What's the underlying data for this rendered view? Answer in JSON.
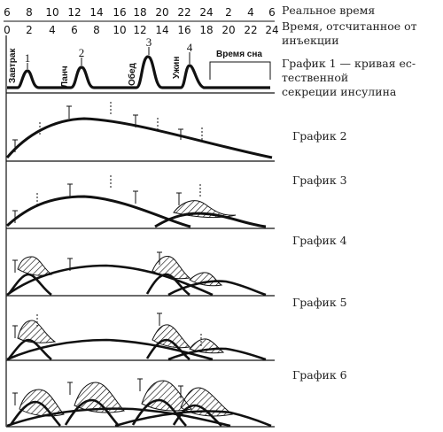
{
  "axis": {
    "real_time_ticks": [
      "6",
      "8",
      "10",
      "12",
      "14",
      "16",
      "18",
      "20",
      "22",
      "24",
      "2",
      "4",
      "6"
    ],
    "injection_time_ticks": [
      "0",
      "2",
      "4",
      "6",
      "8",
      "10",
      "12",
      "14",
      "16",
      "18",
      "20",
      "22",
      "24"
    ]
  },
  "side_labels": {
    "real_time": "Реальное время",
    "injection_time_line1": "Время, отсчитанное от",
    "injection_time_line2": "инъекции",
    "graph1_line1": "График 1 — кривая ес-",
    "graph1_line2": "тественной",
    "graph1_line3": "секреции инсулина",
    "graph2": "График 2",
    "graph3": "График 3",
    "graph4": "График 4",
    "graph5": "График 5",
    "graph6": "График 6"
  },
  "graph1": {
    "meals": [
      "Завтрак",
      "Ланч",
      "Обед",
      "Ужин"
    ],
    "peak_numbers": [
      "1",
      "2",
      "3",
      "4"
    ],
    "sleep": "Время сна"
  }
}
